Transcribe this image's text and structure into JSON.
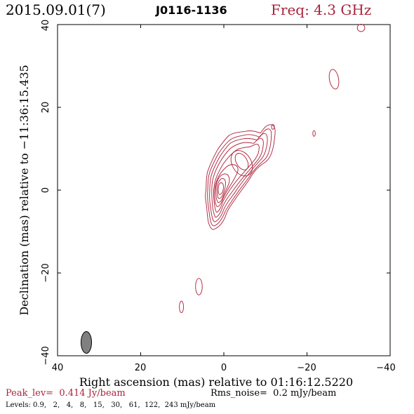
{
  "header": {
    "date": "2015.09.01(7)",
    "source": "J0116-1136",
    "frequency": "Freq: 4.3 GHz"
  },
  "axes": {
    "xlabel": "Right ascension (mas) relative to 01:16:12.5220",
    "ylabel": "Declination (mas) relative to −11:36:15.435",
    "x_range": [
      40,
      -40
    ],
    "y_range": [
      -40,
      40
    ],
    "x_ticks": [
      40,
      20,
      0,
      -20,
      -40
    ],
    "y_ticks": [
      -40,
      -20,
      0,
      20,
      40
    ],
    "x_tick_labels": [
      "40",
      "20",
      "0",
      "−20",
      "−40"
    ],
    "y_tick_labels": [
      "−40",
      "−20",
      "0",
      "20",
      "40"
    ]
  },
  "footer": {
    "peak": "Peak_lev=  0.414 Jy/beam",
    "rms": "Rms_noise=  0.2 mJy/beam",
    "levels": "Levels: 0.9,   2,   4,   8,   15,   30,   61,  122,  243 mJy/beam"
  },
  "colors": {
    "contour": "#b0283f",
    "header_red": "#a8243c",
    "beam_fill": "#808080",
    "axis": "#000000"
  },
  "contour_map": {
    "contour_levels_mjy": [
      0.9,
      2,
      4,
      8,
      15,
      30,
      61,
      122,
      243
    ],
    "core_center_mas": [
      0.5,
      0.5
    ],
    "jet_direction": "north-west",
    "beam": {
      "center_mas": [
        33,
        -36.5
      ],
      "ra_extent_mas": 2.6,
      "dec_extent_mas": 5.3
    }
  }
}
